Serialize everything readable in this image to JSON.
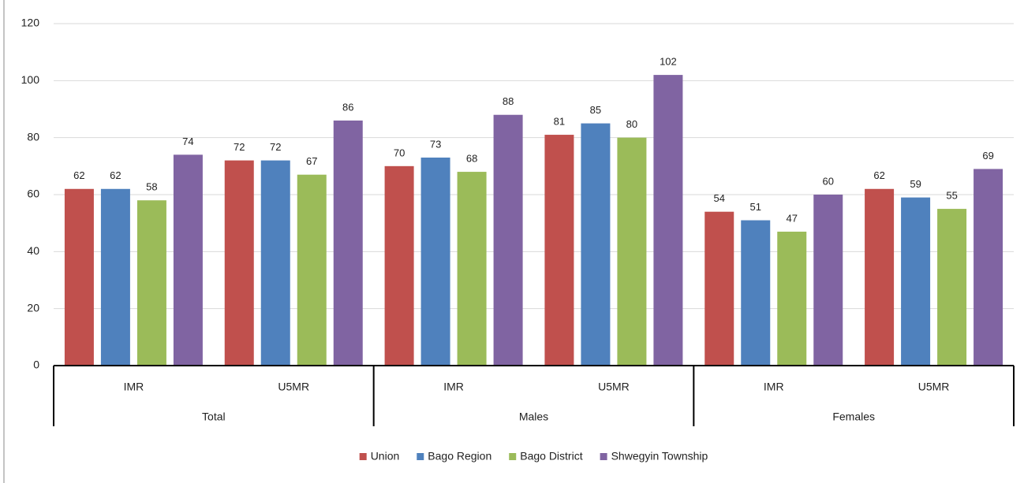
{
  "chart_data": {
    "type": "bar",
    "groups": [
      "Total",
      "Males",
      "Females"
    ],
    "categories": [
      "IMR",
      "U5MR",
      "IMR",
      "U5MR",
      "IMR",
      "U5MR"
    ],
    "series": [
      {
        "name": "Union",
        "color": "#c0504d",
        "values": [
          62,
          72,
          70,
          81,
          54,
          62
        ]
      },
      {
        "name": "Bago Region",
        "color": "#4f81bd",
        "values": [
          62,
          72,
          73,
          85,
          51,
          59
        ]
      },
      {
        "name": "Bago District",
        "color": "#9bbb59",
        "values": [
          58,
          67,
          68,
          80,
          47,
          55
        ]
      },
      {
        "name": "Shwegyin Township",
        "color": "#8064a2",
        "values": [
          74,
          86,
          88,
          102,
          60,
          69
        ]
      }
    ],
    "ylim": [
      0,
      120
    ],
    "yticks": [
      0,
      20,
      40,
      60,
      80,
      100,
      120
    ],
    "grid": true,
    "legend": "bottom"
  }
}
